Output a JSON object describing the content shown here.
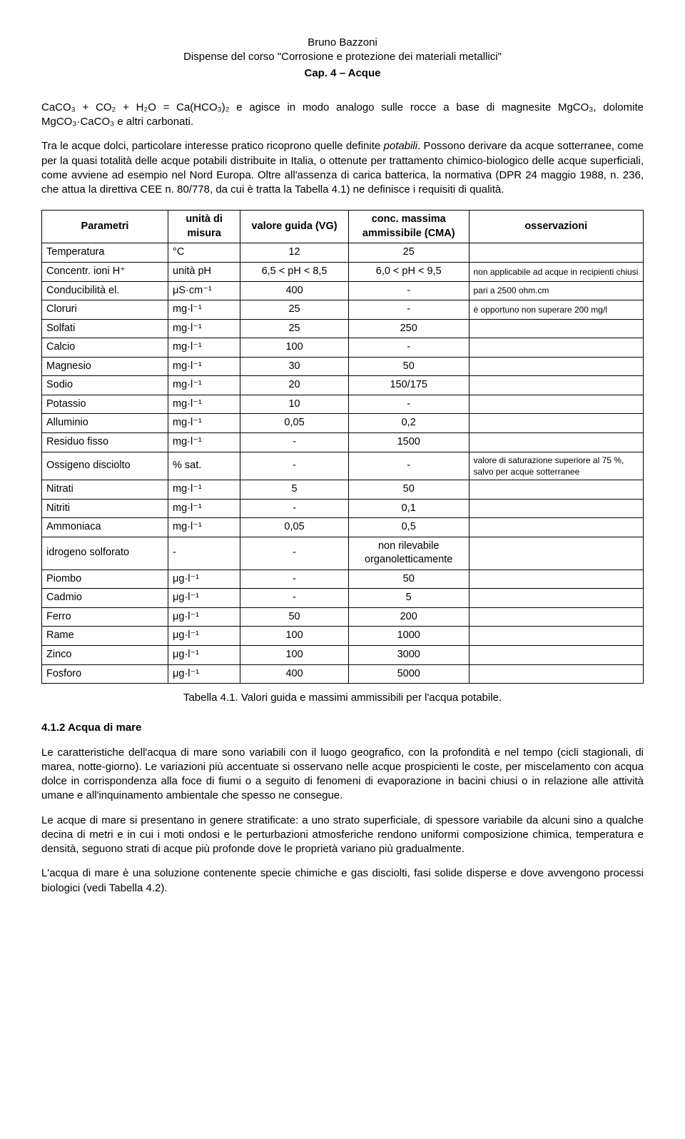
{
  "header": {
    "author": "Bruno Bazzoni",
    "course": "Dispense del corso \"Corrosione e protezione dei materiali metallici\"",
    "chapter": "Cap. 4 – Acque"
  },
  "eq_line": "CaCO₃ + CO₂ + H₂O = Ca(HCO₃)₂ e agisce in modo analogo sulle rocce a base di magnesite MgCO₃, dolomite MgCO₃·CaCO₃ e altri carbonati.",
  "para2_a": "Tra le acque dolci, particolare interesse pratico ricoprono quelle definite ",
  "para2_it": "potabili",
  "para2_b": ". Possono derivare da acque sotterranee, come per la quasi totalità delle acque potabili distribuite in Italia, o ottenute per trattamento chimico-biologico delle acque superficiali, come avviene ad esempio nel Nord Europa. Oltre all'assenza di carica batterica, la normativa (DPR 24 maggio 1988, n. 236, che attua la direttiva CEE n. 80/778, da cui è tratta la Tabella 4.1) ne definisce i requisiti di qualità.",
  "table": {
    "headers": {
      "param": "Parametri",
      "unit": "unità di misura",
      "vg": "valore guida (VG)",
      "cma": "conc. massima ammissibile (CMA)",
      "obs": "osservazioni"
    },
    "rows": [
      {
        "param": "Temperatura",
        "unit": "°C",
        "vg": "12",
        "cma": "25",
        "obs": ""
      },
      {
        "param": "Concentr. ioni H⁺",
        "unit": "unità pH",
        "vg": "6,5 < pH < 8,5",
        "cma": "6,0 < pH < 9,5",
        "obs": "non applicabile ad acque in recipienti chiusi"
      },
      {
        "param": "Conducibilità el.",
        "unit": "μS·cm⁻¹",
        "vg": "400",
        "cma": "-",
        "obs": "pari a 2500 ohm.cm"
      },
      {
        "param": "Cloruri",
        "unit": "mg·l⁻¹",
        "vg": "25",
        "cma": "-",
        "obs": "è opportuno non superare 200 mg/l"
      },
      {
        "param": "Solfati",
        "unit": "mg·l⁻¹",
        "vg": "25",
        "cma": "250",
        "obs": ""
      },
      {
        "param": "Calcio",
        "unit": "mg·l⁻¹",
        "vg": "100",
        "cma": "-",
        "obs": ""
      },
      {
        "param": "Magnesio",
        "unit": "mg·l⁻¹",
        "vg": "30",
        "cma": "50",
        "obs": ""
      },
      {
        "param": "Sodio",
        "unit": "mg·l⁻¹",
        "vg": "20",
        "cma": "150/175",
        "obs": ""
      },
      {
        "param": "Potassio",
        "unit": "mg·l⁻¹",
        "vg": "10",
        "cma": "-",
        "obs": ""
      },
      {
        "param": "Alluminio",
        "unit": "mg·l⁻¹",
        "vg": "0,05",
        "cma": "0,2",
        "obs": ""
      },
      {
        "param": "Residuo fisso",
        "unit": "mg·l⁻¹",
        "vg": "-",
        "cma": "1500",
        "obs": ""
      },
      {
        "param": "Ossigeno disciolto",
        "unit": "% sat.",
        "vg": "-",
        "cma": "-",
        "obs": "valore di saturazione superiore al 75 %, salvo per acque sotterranee"
      },
      {
        "param": "Nitrati",
        "unit": "mg·l⁻¹",
        "vg": "5",
        "cma": "50",
        "obs": ""
      },
      {
        "param": "Nitriti",
        "unit": "mg·l⁻¹",
        "vg": "-",
        "cma": "0,1",
        "obs": ""
      },
      {
        "param": "Ammoniaca",
        "unit": "mg·l⁻¹",
        "vg": "0,05",
        "cma": "0,5",
        "obs": ""
      },
      {
        "param": "idrogeno solforato",
        "unit": "-",
        "vg": "-",
        "cma": "non rilevabile organoletticamente",
        "obs": ""
      },
      {
        "param": "Piombo",
        "unit": "μg·l⁻¹",
        "vg": "-",
        "cma": "50",
        "obs": ""
      },
      {
        "param": "Cadmio",
        "unit": "μg·l⁻¹",
        "vg": "-",
        "cma": "5",
        "obs": ""
      },
      {
        "param": "Ferro",
        "unit": "μg·l⁻¹",
        "vg": "50",
        "cma": "200",
        "obs": ""
      },
      {
        "param": "Rame",
        "unit": "μg·l⁻¹",
        "vg": "100",
        "cma": "1000",
        "obs": ""
      },
      {
        "param": "Zinco",
        "unit": "μg·l⁻¹",
        "vg": "100",
        "cma": "3000",
        "obs": ""
      },
      {
        "param": "Fosforo",
        "unit": "μg·l⁻¹",
        "vg": "400",
        "cma": "5000",
        "obs": ""
      }
    ]
  },
  "caption": "Tabella 4.1. Valori guida e massimi ammissibili per l'acqua potabile.",
  "section": "4.1.2   Acqua di mare",
  "para3": "Le caratteristiche dell'acqua di mare sono variabili con il luogo geografico, con la profondità e nel tempo (cicli stagionali, di marea, notte-giorno). Le variazioni più accentuate si osservano nelle acque prospicienti le coste, per miscelamento con acqua dolce in corrispondenza alla foce di fiumi o a seguito di fenomeni di evaporazione in bacini chiusi o in relazione alle attività umane e all'inquinamento ambientale che spesso ne consegue.",
  "para4": "Le acque di mare si presentano in genere stratificate: a uno strato superficiale, di spessore variabile da alcuni sino a qualche decina di metri e in cui i moti ondosi e le perturbazioni atmosferiche rendono uniformi composizione chimica, temperatura e densità, seguono strati di acque più profonde dove le proprietà variano più gradualmente.",
  "para5": "L'acqua di mare è una soluzione contenente specie chimiche e gas disciolti, fasi solide disperse e dove avvengono processi biologici (vedi Tabella 4.2)."
}
